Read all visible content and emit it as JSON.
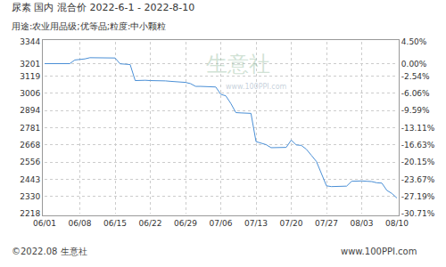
{
  "chart_data": {
    "type": "line",
    "title": "尿素 国内 混合价 2022-6-1 - 2022-8-10",
    "subtitle": "用途:农业用品级;优等品;粒度:中小颗粒",
    "categories": [
      "06/01",
      null,
      null,
      null,
      null,
      null,
      null,
      "06/08",
      null,
      null,
      null,
      null,
      null,
      null,
      "06/15",
      null,
      null,
      null,
      null,
      null,
      null,
      "06/22",
      null,
      null,
      null,
      null,
      null,
      null,
      "06/29",
      null,
      null,
      null,
      null,
      null,
      null,
      "07/06",
      null,
      null,
      null,
      null,
      null,
      null,
      "07/13",
      null,
      null,
      null,
      null,
      null,
      null,
      "07/20",
      null,
      null,
      null,
      null,
      null,
      null,
      "07/27",
      null,
      null,
      null,
      null,
      null,
      null,
      "08/03",
      null,
      null,
      null,
      null,
      null,
      null,
      "08/10"
    ],
    "values": [
      3201,
      3201,
      3201,
      3201,
      3201,
      3201,
      3225,
      3228,
      3232,
      3240,
      3240,
      3240,
      3240,
      3240,
      3238,
      3200,
      3198,
      3195,
      3090,
      3092,
      3092,
      3090,
      3090,
      3088,
      3088,
      3085,
      3082,
      3080,
      3078,
      3070,
      3052,
      3052,
      3050,
      3050,
      3048,
      3000,
      2990,
      2940,
      2880,
      2878,
      2878,
      2875,
      2690,
      2680,
      2670,
      2650,
      2650,
      2650,
      2652,
      2700,
      2668,
      2665,
      2640,
      2600,
      2560,
      2480,
      2400,
      2395,
      2395,
      2395,
      2398,
      2430,
      2432,
      2432,
      2430,
      2428,
      2420,
      2418,
      2370,
      2350,
      2320
    ],
    "color": "#4a8fd6",
    "ylim": [
      2218,
      3344
    ],
    "yticks": [
      2218,
      2330,
      2443,
      2556,
      2668,
      2781,
      2894,
      3006,
      3119,
      3201,
      3344
    ],
    "y2lim": [
      -30.71,
      4.5
    ],
    "y2ticks": [
      {
        "value": -30.71,
        "label": "-30.71%"
      },
      {
        "value": -27.19,
        "label": "-27.19%"
      },
      {
        "value": -23.67,
        "label": "-23.67%"
      },
      {
        "value": -20.15,
        "label": "-20.15%"
      },
      {
        "value": -16.63,
        "label": "-16.63%"
      },
      {
        "value": -13.11,
        "label": "-13.11%"
      },
      {
        "value": -9.59,
        "label": "-9.59%"
      },
      {
        "value": -6.06,
        "label": "-6.06%"
      },
      {
        "value": -2.54,
        "label": "-2.54%"
      },
      {
        "value": 0,
        "label": "0.00%"
      },
      {
        "value": 4.5,
        "label": "4.50%"
      }
    ],
    "grid": true,
    "annotations": [
      "生意社",
      "www.100PPI.com",
      "©2022.08 生意社",
      "www.100PPI.com"
    ]
  }
}
